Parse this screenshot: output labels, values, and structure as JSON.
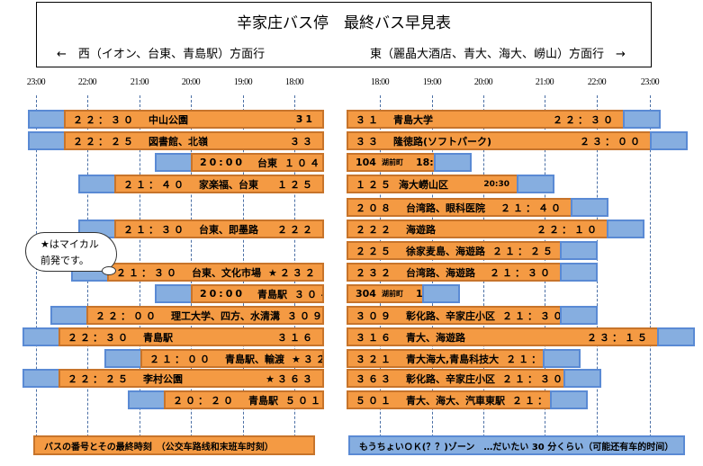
{
  "header": {
    "title": "辛家庄バス停　最終バス早見表",
    "west_direction": "←　西（イオン、台東、青島駅）方面行",
    "east_direction": "東（麗晶大酒店、青大、海大、嶗山）方面行　→"
  },
  "west_ticks": [
    "23:00",
    "22:00",
    "21:00",
    "20:00",
    "19:00",
    "18:00"
  ],
  "east_ticks": [
    "18:00",
    "19:00",
    "20:00",
    "21:00",
    "22:00",
    "23:00"
  ],
  "west": {
    "rows": [
      {
        "time": "２２：３０",
        "dest": "中山公園",
        "route": "31"
      },
      {
        "time": "２２：２５",
        "dest": "図書館、北嶺",
        "route": "３３"
      },
      {
        "time": "20:00",
        "dest": "台東",
        "route": "１０４"
      },
      {
        "time": "２１：４０",
        "dest": "家楽福、台東",
        "route": "１２５"
      },
      {
        "time": "２１：３０",
        "dest": "台東、即墨路",
        "route": "２２２"
      },
      {
        "time": "２１：３０",
        "dest": "台東、文化市場",
        "route": "★２３２"
      },
      {
        "time": "20:00",
        "dest": "青島駅",
        "route": "３０４"
      },
      {
        "time": "２２：００",
        "dest": "理工大学、四方、水清溝",
        "route": "３０９"
      },
      {
        "time": "２２：３０",
        "dest": "青島駅",
        "route": "３１６"
      },
      {
        "time": "２１：００",
        "dest": "青島駅、輸渡",
        "route": "★３２１"
      },
      {
        "time": "２２：２５",
        "dest": "李村公園",
        "route": "★３６３"
      },
      {
        "time": "２０：２０",
        "dest": "青島駅",
        "route": "５０１"
      }
    ]
  },
  "east": {
    "rows": [
      {
        "route": "３１",
        "dest": "青島大学",
        "time": "２２：３０"
      },
      {
        "route": "３３",
        "dest": "隆徳路(ソフトパーク)",
        "time": "２３：００"
      },
      {
        "route": "104",
        "dest": "湖前町",
        "time": "18:50"
      },
      {
        "route": "１２５",
        "dest": "海大嶗山区",
        "time": "20:30"
      },
      {
        "route": "２０８",
        "dest": "台湾路、眼科医院",
        "time": "２１：４０"
      },
      {
        "route": "２２２",
        "dest": "海遊路",
        "time": "２２：１０"
      },
      {
        "route": "２２５",
        "dest": "徐家麦島、海遊路",
        "time": "２１：２５"
      },
      {
        "route": "２３２",
        "dest": "台湾路、海遊路",
        "time": "２１：３０"
      },
      {
        "route": "304",
        "dest": "湖前町",
        "time": "18:30"
      },
      {
        "route": "３０９",
        "dest": "彰化路、辛家庄小区",
        "time": "２１：３０"
      },
      {
        "route": "３１６",
        "dest": "青大、海遊路",
        "time": "２３：１５"
      },
      {
        "route": "３２１",
        "dest": "青大海大,青島科技大",
        "time": "２１：００"
      },
      {
        "route": "３６３",
        "dest": "彰化路、辛家庄小区",
        "time": "２１：３０"
      },
      {
        "route": "５０１",
        "dest": "青大、海大、汽車東駅",
        "time": "２１：１５"
      }
    ]
  },
  "callout": {
    "line1": "★はマイカル",
    "line2": "前発です。"
  },
  "legend": {
    "orange": "バスの番号とその最終時刻　（公交车路线和末班车时刻）",
    "blue": "もうちょいＯＫ(？？)ゾーン　…だいたい 30 分くらい（可能还有车的时间）"
  },
  "colors": {
    "orange": "#f49a43",
    "blue": "#86aee0"
  }
}
